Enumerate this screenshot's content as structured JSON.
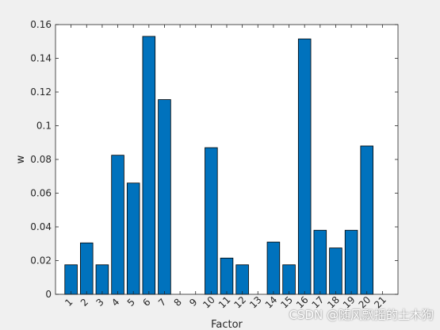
{
  "chart_data": {
    "type": "bar",
    "categories": [
      "1",
      "2",
      "3",
      "4",
      "5",
      "6",
      "7",
      "8",
      "9",
      "10",
      "11",
      "12",
      "13",
      "14",
      "15",
      "16",
      "17",
      "18",
      "19",
      "20",
      "21"
    ],
    "values": [
      0.0175,
      0.0305,
      0.0175,
      0.0825,
      0.066,
      0.153,
      0.1155,
      0,
      0,
      0.087,
      0.0215,
      0.0175,
      0,
      0.031,
      0.0175,
      0.1515,
      0.038,
      0.0275,
      0.038,
      0.088,
      0
    ],
    "yticks": [
      "0",
      "0.02",
      "0.04",
      "0.06",
      "0.08",
      "0.1",
      "0.12",
      "0.14",
      "0.16"
    ],
    "xlabel": "Factor",
    "ylabel": "w",
    "ylim": [
      0,
      0.16
    ],
    "grid": false,
    "bar_color": "#0072bd",
    "axes_bg": "#ffffff",
    "figure_bg": "#f0f0f0"
  },
  "watermark": "CSDN @随风飘摇的土木狗"
}
